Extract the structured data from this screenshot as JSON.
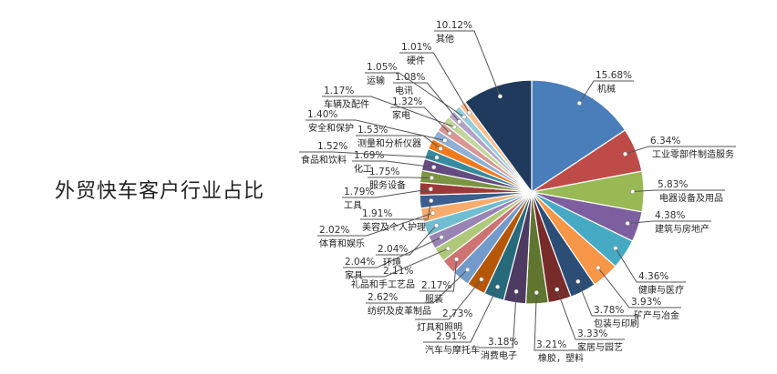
{
  "chart_data": {
    "type": "pie",
    "title": "外贸快车客户行业占比",
    "start": "12 o'clock, clockwise",
    "slices": [
      {
        "label": "机械",
        "value": 15.68,
        "color": "#4A7EBB"
      },
      {
        "label": "工业零部件制造服务",
        "value": 6.34,
        "color": "#BE4B48"
      },
      {
        "label": "电器设备及用品",
        "value": 5.83,
        "color": "#98B954"
      },
      {
        "label": "建筑与房地产",
        "value": 4.38,
        "color": "#7D5FA0"
      },
      {
        "label": "健康与医疗",
        "value": 4.36,
        "color": "#46AAC5"
      },
      {
        "label": "矿产与冶金",
        "value": 3.93,
        "color": "#F79646"
      },
      {
        "label": "包装与印刷",
        "value": 3.78,
        "color": "#2C4D75"
      },
      {
        "label": "家居与园艺",
        "value": 3.33,
        "color": "#772C2A"
      },
      {
        "label": "橡胶，塑料",
        "value": 3.21,
        "color": "#5F7530"
      },
      {
        "label": "消费电子",
        "value": 3.18,
        "color": "#4D3B62"
      },
      {
        "label": "汽车与摩托车",
        "value": 2.91,
        "color": "#276A7C"
      },
      {
        "label": "灯具和照明",
        "value": 2.73,
        "color": "#B65708"
      },
      {
        "label": "纺织及皮革制品",
        "value": 2.62,
        "color": "#729ACA"
      },
      {
        "label": "服装",
        "value": 2.17,
        "color": "#CD7371"
      },
      {
        "label": "礼品和手工艺品",
        "value": 2.11,
        "color": "#AFC97A"
      },
      {
        "label": "家具",
        "value": 2.04,
        "color": "#9983B5"
      },
      {
        "label": "环境",
        "value": 2.04,
        "color": "#6FBDD1"
      },
      {
        "label": "体育和娱乐",
        "value": 2.02,
        "color": "#F9AB6B"
      },
      {
        "label": "美容及个人护理",
        "value": 1.91,
        "color": "#3A5F8E"
      },
      {
        "label": "工具",
        "value": 1.79,
        "color": "#9B3A38"
      },
      {
        "label": "服务设备",
        "value": 1.75,
        "color": "#7A9441"
      },
      {
        "label": "化工",
        "value": 1.69,
        "color": "#644C81"
      },
      {
        "label": "食品和饮料",
        "value": 1.52,
        "color": "#368BA0"
      },
      {
        "label": "测量和分析仪器",
        "value": 1.53,
        "color": "#F07A1E"
      },
      {
        "label": "安全和保护",
        "value": 1.4,
        "color": "#8FAFD5"
      },
      {
        "label": "家电",
        "value": 1.32,
        "color": "#D99694"
      },
      {
        "label": "车辆及配件",
        "value": 1.17,
        "color": "#C3D69B"
      },
      {
        "label": "电讯",
        "value": 1.08,
        "color": "#B3A2C7"
      },
      {
        "label": "运输",
        "value": 1.05,
        "color": "#93CDDD"
      },
      {
        "label": "硬件",
        "value": 1.01,
        "color": "#FAC090"
      },
      {
        "label": "其他",
        "value": 10.12,
        "color": "#1F3A5C"
      }
    ],
    "value_format": "percent"
  }
}
